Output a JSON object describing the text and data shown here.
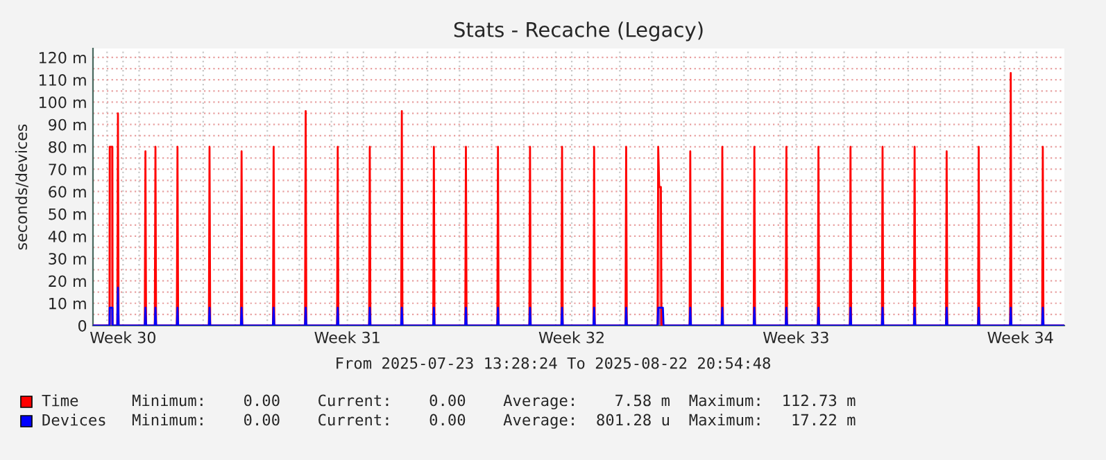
{
  "chart_data": {
    "type": "area",
    "title": "Stats - Recache (Legacy)",
    "ylabel": "seconds/devices",
    "annotations": [
      "From 2025-07-23 13:28:24 To 2025-08-22 20:54:48",
      "Minimum:    0.00    Current:    0.00    Average:    7.58 m  Maximum:  112.73 m",
      "Minimum:    0.00    Current:    0.00    Average:  801.28 u  Maximum:   17.22 m"
    ],
    "xlim": [
      "2025-07-23T13:28",
      "2025-08-22T20:54"
    ],
    "xticks": [
      {
        "value": "2025-07-24T12:00",
        "label": "Week 30"
      },
      {
        "value": "2025-07-31T12:00",
        "label": "Week 31"
      },
      {
        "value": "2025-08-07T12:00",
        "label": "Week 32"
      },
      {
        "value": "2025-08-14T12:00",
        "label": "Week 33"
      },
      {
        "value": "2025-08-21T12:00",
        "label": "Week 34"
      },
      {
        "value": "2025-07-24",
        "label": null
      },
      {
        "value": "2025-07-25",
        "label": null
      },
      {
        "value": "2025-07-26",
        "label": null
      },
      {
        "value": "2025-07-27",
        "label": null
      },
      {
        "value": "2025-07-28",
        "label": null
      },
      {
        "value": "2025-07-29",
        "label": null
      },
      {
        "value": "2025-07-30",
        "label": null
      },
      {
        "value": "2025-07-31",
        "label": null
      },
      {
        "value": "2025-08-01",
        "label": null
      },
      {
        "value": "2025-08-02",
        "label": null
      },
      {
        "value": "2025-08-03",
        "label": null
      },
      {
        "value": "2025-08-04",
        "label": null
      },
      {
        "value": "2025-08-05",
        "label": null
      },
      {
        "value": "2025-08-06",
        "label": null
      },
      {
        "value": "2025-08-07",
        "label": null
      },
      {
        "value": "2025-08-08",
        "label": null
      },
      {
        "value": "2025-08-09",
        "label": null
      },
      {
        "value": "2025-08-10",
        "label": null
      },
      {
        "value": "2025-08-11",
        "label": null
      },
      {
        "value": "2025-08-12",
        "label": null
      },
      {
        "value": "2025-08-13",
        "label": null
      },
      {
        "value": "2025-08-14",
        "label": null
      },
      {
        "value": "2025-08-15",
        "label": null
      },
      {
        "value": "2025-08-16",
        "label": null
      },
      {
        "value": "2025-08-17",
        "label": null
      },
      {
        "value": "2025-08-18",
        "label": null
      },
      {
        "value": "2025-08-19",
        "label": null
      },
      {
        "value": "2025-08-20",
        "label": null
      },
      {
        "value": "2025-08-21",
        "label": null
      },
      {
        "value": "2025-08-22",
        "label": null
      }
    ],
    "ylim": [
      0,
      124
    ],
    "yticks": [
      0,
      {
        "value": 10,
        "label": "10 m"
      },
      {
        "value": 20,
        "label": "20 m"
      },
      {
        "value": 30,
        "label": "30 m"
      },
      {
        "value": 40,
        "label": "40 m"
      },
      {
        "value": 50,
        "label": "50 m"
      },
      {
        "value": 60,
        "label": "60 m"
      },
      {
        "value": 70,
        "label": "70 m"
      },
      {
        "value": 80,
        "label": "80 m"
      },
      {
        "value": 90,
        "label": "90 m"
      },
      {
        "value": 100,
        "label": "100 m"
      },
      {
        "value": 110,
        "label": "110 m"
      },
      {
        "value": 120,
        "label": "120 m"
      },
      {
        "value": 5,
        "label": null
      },
      {
        "value": 15,
        "label": null
      },
      {
        "value": 25,
        "label": null
      },
      {
        "value": 35,
        "label": null
      },
      {
        "value": 45,
        "label": null
      },
      {
        "value": 55,
        "label": null
      },
      {
        "value": 65,
        "label": null
      },
      {
        "value": 75,
        "label": null
      },
      {
        "value": 85,
        "label": null
      },
      {
        "value": 95,
        "label": null
      },
      {
        "value": 105,
        "label": null
      },
      {
        "value": 115,
        "label": null
      }
    ],
    "grid": true,
    "legend": "bottom",
    "series": [
      {
        "name": "Time",
        "color": "#ff0000",
        "x": [
          "2025-07-23T13:28",
          "2025-07-24T01:50",
          "2025-07-24T02:00",
          "2025-07-24T04:00",
          "2025-07-24T04:10",
          "2025-07-24T07:40",
          "2025-07-24T08:10",
          "2025-07-24T08:40",
          "2025-07-25T04:15",
          "2025-07-25T04:45",
          "2025-07-25T05:15",
          "2025-07-25T11:45",
          "2025-07-25T12:15",
          "2025-07-25T12:45",
          "2025-07-26T04:15",
          "2025-07-26T04:45",
          "2025-07-26T05:15",
          "2025-07-27T04:15",
          "2025-07-27T04:45",
          "2025-07-27T05:15",
          "2025-07-28T04:15",
          "2025-07-28T04:45",
          "2025-07-28T05:15",
          "2025-07-29T04:15",
          "2025-07-29T04:45",
          "2025-07-29T05:15",
          "2025-07-30T04:15",
          "2025-07-30T04:45",
          "2025-07-30T05:15",
          "2025-07-31T04:15",
          "2025-07-31T04:45",
          "2025-07-31T05:15",
          "2025-08-01T04:15",
          "2025-08-01T04:45",
          "2025-08-01T05:15",
          "2025-08-02T04:15",
          "2025-08-02T04:45",
          "2025-08-02T05:15",
          "2025-08-03T04:15",
          "2025-08-03T04:45",
          "2025-08-03T05:15",
          "2025-08-04T04:15",
          "2025-08-04T04:45",
          "2025-08-04T05:15",
          "2025-08-05T04:15",
          "2025-08-05T04:45",
          "2025-08-05T05:15",
          "2025-08-06T04:15",
          "2025-08-06T04:45",
          "2025-08-06T05:15",
          "2025-08-07T04:15",
          "2025-08-07T04:45",
          "2025-08-07T05:15",
          "2025-08-08T04:15",
          "2025-08-08T04:45",
          "2025-08-08T05:15",
          "2025-08-09T04:15",
          "2025-08-09T04:45",
          "2025-08-09T05:15",
          "2025-08-10T04:15",
          "2025-08-10T04:45",
          "2025-08-10T05:30",
          "2025-08-10T06:45",
          "2025-08-10T07:15",
          "2025-08-11T04:15",
          "2025-08-11T04:45",
          "2025-08-11T05:15",
          "2025-08-12T04:15",
          "2025-08-12T04:45",
          "2025-08-12T05:15",
          "2025-08-13T04:15",
          "2025-08-13T04:45",
          "2025-08-13T05:15",
          "2025-08-14T04:15",
          "2025-08-14T04:45",
          "2025-08-14T05:15",
          "2025-08-15T04:15",
          "2025-08-15T04:45",
          "2025-08-15T05:15",
          "2025-08-16T04:15",
          "2025-08-16T04:45",
          "2025-08-16T05:15",
          "2025-08-17T04:15",
          "2025-08-17T04:45",
          "2025-08-17T05:15",
          "2025-08-18T04:15",
          "2025-08-18T04:45",
          "2025-08-18T05:15",
          "2025-08-19T04:15",
          "2025-08-19T04:45",
          "2025-08-19T05:15",
          "2025-08-20T04:15",
          "2025-08-20T04:45",
          "2025-08-20T05:15",
          "2025-08-21T04:15",
          "2025-08-21T04:45",
          "2025-08-21T05:15",
          "2025-08-22T04:15",
          "2025-08-22T04:45",
          "2025-08-22T05:15",
          "2025-08-22T20:54"
        ],
        "values": [
          0,
          0,
          80,
          80,
          0,
          0,
          95,
          0,
          0,
          78,
          0,
          0,
          80,
          0,
          0,
          80,
          0,
          0,
          80,
          0,
          0,
          78,
          0,
          0,
          80,
          0,
          0,
          96,
          0,
          0,
          80,
          0,
          0,
          80,
          0,
          0,
          96,
          0,
          0,
          80,
          0,
          0,
          80,
          0,
          0,
          80,
          0,
          0,
          80,
          0,
          0,
          80,
          0,
          0,
          80,
          0,
          0,
          80,
          0,
          0,
          80,
          62,
          62,
          0,
          0,
          78,
          0,
          0,
          80,
          0,
          0,
          80,
          0,
          0,
          80,
          0,
          0,
          80,
          0,
          0,
          80,
          0,
          0,
          80,
          0,
          0,
          80,
          0,
          0,
          78,
          0,
          0,
          80,
          0,
          0,
          113,
          0,
          0,
          80,
          0,
          0
        ]
      },
      {
        "name": "Devices",
        "color": "#0000ff",
        "x": [
          "2025-07-23T13:28",
          "2025-07-24T01:50",
          "2025-07-24T02:00",
          "2025-07-24T04:00",
          "2025-07-24T04:10",
          "2025-07-24T07:40",
          "2025-07-24T08:10",
          "2025-07-24T08:40",
          "2025-07-25T04:15",
          "2025-07-25T04:45",
          "2025-07-25T05:15",
          "2025-07-25T11:45",
          "2025-07-25T12:15",
          "2025-07-25T12:45",
          "2025-07-26T04:15",
          "2025-07-26T04:45",
          "2025-07-26T05:15",
          "2025-07-27T04:15",
          "2025-07-27T04:45",
          "2025-07-27T05:15",
          "2025-07-28T04:15",
          "2025-07-28T04:45",
          "2025-07-28T05:15",
          "2025-07-29T04:15",
          "2025-07-29T04:45",
          "2025-07-29T05:15",
          "2025-07-30T04:15",
          "2025-07-30T04:45",
          "2025-07-30T05:15",
          "2025-07-31T04:15",
          "2025-07-31T04:45",
          "2025-07-31T05:15",
          "2025-08-01T04:15",
          "2025-08-01T04:45",
          "2025-08-01T05:15",
          "2025-08-02T04:15",
          "2025-08-02T04:45",
          "2025-08-02T05:15",
          "2025-08-03T04:15",
          "2025-08-03T04:45",
          "2025-08-03T05:15",
          "2025-08-04T04:15",
          "2025-08-04T04:45",
          "2025-08-04T05:15",
          "2025-08-05T04:15",
          "2025-08-05T04:45",
          "2025-08-05T05:15",
          "2025-08-06T04:15",
          "2025-08-06T04:45",
          "2025-08-06T05:15",
          "2025-08-07T04:15",
          "2025-08-07T04:45",
          "2025-08-07T05:15",
          "2025-08-08T04:15",
          "2025-08-08T04:45",
          "2025-08-08T05:15",
          "2025-08-09T04:15",
          "2025-08-09T04:45",
          "2025-08-09T05:15",
          "2025-08-10T04:15",
          "2025-08-10T04:45",
          "2025-08-10T08:15",
          "2025-08-10T08:45",
          "2025-08-11T04:15",
          "2025-08-11T04:45",
          "2025-08-11T05:15",
          "2025-08-12T04:15",
          "2025-08-12T04:45",
          "2025-08-12T05:15",
          "2025-08-13T04:15",
          "2025-08-13T04:45",
          "2025-08-13T05:15",
          "2025-08-14T04:15",
          "2025-08-14T04:45",
          "2025-08-14T05:15",
          "2025-08-15T04:15",
          "2025-08-15T04:45",
          "2025-08-15T05:15",
          "2025-08-16T04:15",
          "2025-08-16T04:45",
          "2025-08-16T05:15",
          "2025-08-17T04:15",
          "2025-08-17T04:45",
          "2025-08-17T05:15",
          "2025-08-18T04:15",
          "2025-08-18T04:45",
          "2025-08-18T05:15",
          "2025-08-19T04:15",
          "2025-08-19T04:45",
          "2025-08-19T05:15",
          "2025-08-20T04:15",
          "2025-08-20T04:45",
          "2025-08-20T05:15",
          "2025-08-21T04:15",
          "2025-08-21T04:45",
          "2025-08-21T05:15",
          "2025-08-22T04:15",
          "2025-08-22T04:45",
          "2025-08-22T05:15",
          "2025-08-22T20:54"
        ],
        "values": [
          0,
          0,
          8,
          8,
          0,
          0,
          17,
          0,
          0,
          8,
          0,
          0,
          8,
          0,
          0,
          8,
          0,
          0,
          8,
          0,
          0,
          8,
          0,
          0,
          8,
          0,
          0,
          8,
          0,
          0,
          8,
          0,
          0,
          8,
          0,
          0,
          8,
          0,
          0,
          8,
          0,
          0,
          8,
          0,
          0,
          8,
          0,
          0,
          8,
          0,
          0,
          8,
          0,
          0,
          8,
          0,
          0,
          8,
          0,
          0,
          8,
          8,
          0,
          0,
          8,
          0,
          0,
          8,
          0,
          0,
          8,
          0,
          0,
          8,
          0,
          0,
          8,
          0,
          0,
          8,
          0,
          0,
          8,
          0,
          0,
          8,
          0,
          0,
          8,
          0,
          0,
          8,
          0,
          0,
          8,
          0,
          0,
          8,
          0,
          0
        ]
      }
    ]
  }
}
